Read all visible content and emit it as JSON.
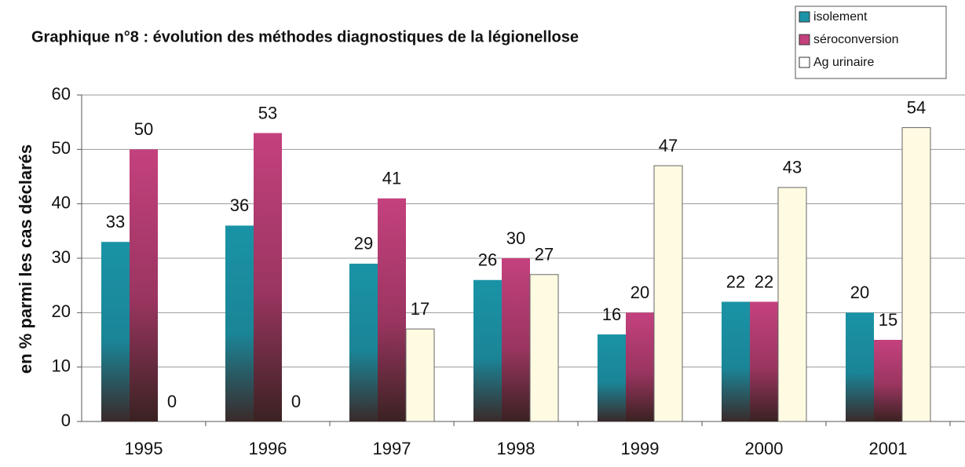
{
  "chart_data": {
    "type": "bar",
    "title": "Graphique n°8 : évolution des méthodes diagnostiques de la légionellose",
    "y_label": "en % parmi les cas déclarés",
    "categories": [
      "1995",
      "1996",
      "1997",
      "1998",
      "1999",
      "2000",
      "2001"
    ],
    "series": [
      {
        "name": "isolement",
        "color": "#1a93a6",
        "values": [
          33,
          36,
          29,
          26,
          16,
          22,
          20
        ]
      },
      {
        "name": "séroconversion",
        "color": "#c4417e",
        "values": [
          50,
          53,
          41,
          30,
          20,
          22,
          15
        ]
      },
      {
        "name": "Ag urinaire",
        "color": "#fffbe2",
        "values": [
          0,
          0,
          17,
          27,
          47,
          43,
          54
        ]
      }
    ],
    "ylim": [
      0,
      60
    ],
    "yticks": [
      0,
      10,
      20,
      30,
      40,
      50,
      60
    ],
    "grid": true,
    "legend": "top-right"
  }
}
